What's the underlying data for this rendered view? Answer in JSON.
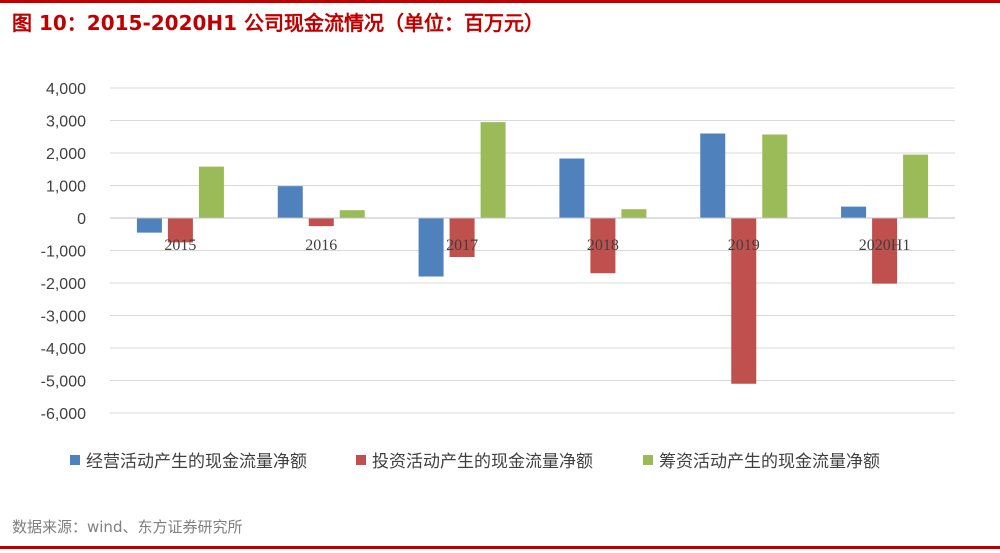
{
  "header": {
    "title": "图 10：2015-2020H1 公司现金流情况（单位：百万元）"
  },
  "footer": {
    "source": "数据来源：wind、东方证券研究所"
  },
  "colors": {
    "accent": "#c00000",
    "operating": "#4f81bd",
    "investing": "#c0504d",
    "financing": "#9bbb59",
    "grid": "#d9d9d9"
  },
  "chart_data": {
    "type": "bar",
    "title": "",
    "xlabel": "",
    "ylabel": "",
    "categories": [
      "2015",
      "2016",
      "2017",
      "2018",
      "2019",
      "2020H1"
    ],
    "ylim": [
      -6000,
      4000
    ],
    "yticks": [
      4000,
      3000,
      2000,
      1000,
      0,
      -1000,
      -2000,
      -3000,
      -4000,
      -5000,
      -6000
    ],
    "ytick_labels": [
      "4,000",
      "3,000",
      "2,000",
      "1,000",
      "0",
      "-1,000",
      "-2,000",
      "-3,000",
      "-4,000",
      "-5,000",
      "-6,000"
    ],
    "grid": true,
    "legend_position": "bottom",
    "series": [
      {
        "name": "经营活动产生的现金流量净额",
        "color": "#4f81bd",
        "values": [
          -450,
          980,
          -1800,
          1830,
          2600,
          350
        ]
      },
      {
        "name": "投资活动产生的现金流量净额",
        "color": "#c0504d",
        "values": [
          -750,
          -250,
          -1200,
          -1700,
          -5100,
          -2020
        ]
      },
      {
        "name": "筹资活动产生的现金流量净额",
        "color": "#9bbb59",
        "values": [
          1580,
          240,
          2950,
          270,
          2570,
          1950
        ]
      }
    ]
  }
}
